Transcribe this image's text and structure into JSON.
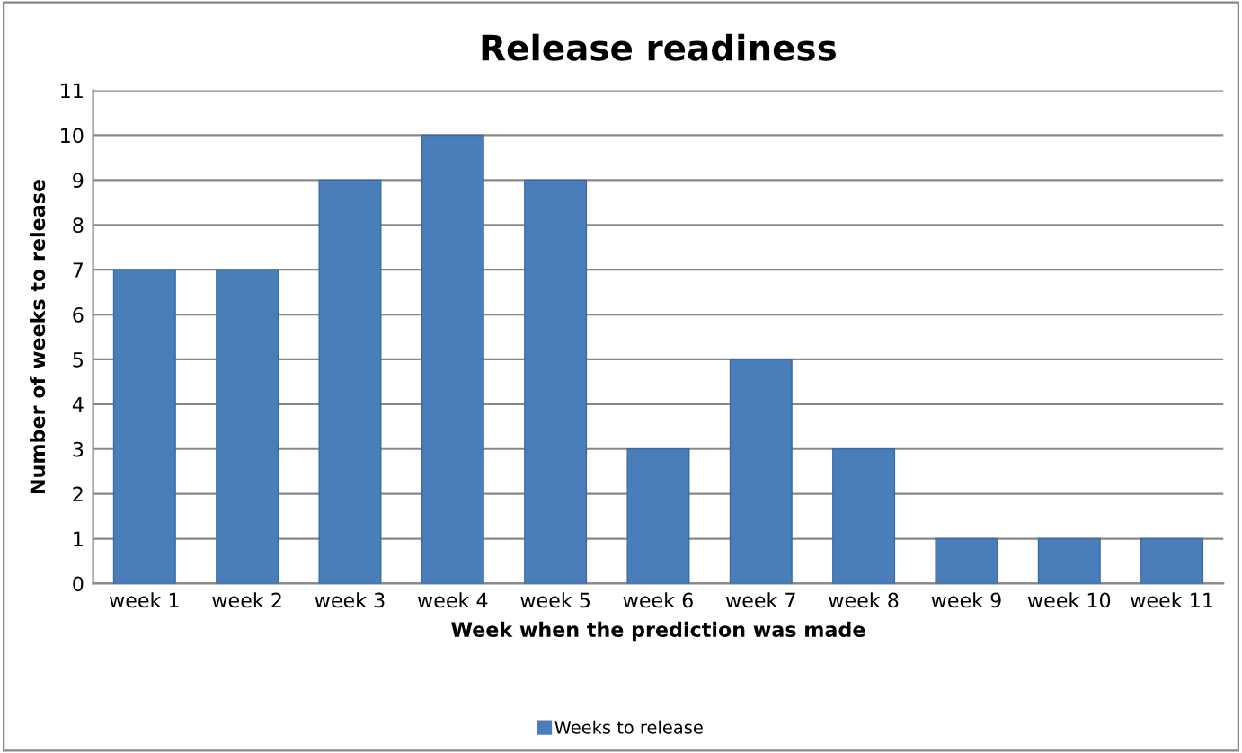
{
  "chart_data": {
    "type": "bar",
    "title": "Release readiness",
    "xlabel": "Week when the prediction was made",
    "ylabel": "Number of weeks to release",
    "categories": [
      "week 1",
      "week 2",
      "week 3",
      "week 4",
      "week 5",
      "week 6",
      "week 7",
      "week 8",
      "week 9",
      "week 10",
      "week 11"
    ],
    "series": [
      {
        "name": "Weeks to release",
        "color": "#4a7ebb",
        "values": [
          7,
          7,
          9,
          10,
          9,
          3,
          5,
          3,
          1,
          1,
          1
        ]
      }
    ],
    "ylim": [
      0,
      11
    ],
    "yticks": [
      0,
      1,
      2,
      3,
      4,
      5,
      6,
      7,
      8,
      9,
      10,
      11
    ],
    "grid": "y",
    "legend": "bottom"
  }
}
